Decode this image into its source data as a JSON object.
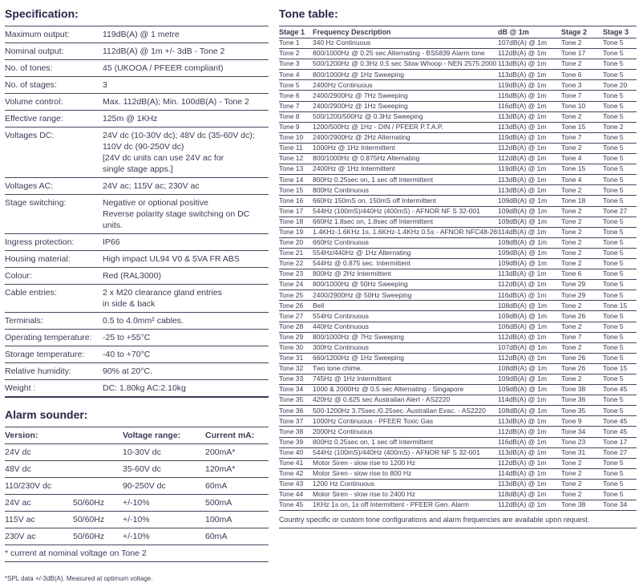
{
  "colors": {
    "text": "#3a3a55",
    "heading": "#26264a",
    "rule": "#45455f"
  },
  "spec": {
    "title": "Specification:",
    "rows": [
      {
        "label": "Maximum output:",
        "value_lines": [
          "119dB(A) @ 1 metre"
        ]
      },
      {
        "label": "Nominal output:",
        "value_lines": [
          "112dB(A) @ 1m +/- 3dB - Tone 2"
        ]
      },
      {
        "label": "No. of tones:",
        "value_lines": [
          "45 (UKOOA / PFEER compliant)"
        ]
      },
      {
        "label": "No. of stages:",
        "value_lines": [
          "3"
        ]
      },
      {
        "label": "Volume control:",
        "value_lines": [
          "Max. 112dB(A); Min. 100dB(A) - Tone 2"
        ]
      },
      {
        "label": "Effective range:",
        "value_lines": [
          "125m @ 1KHz"
        ]
      },
      {
        "label": "Voltages DC:",
        "value_lines": [
          "24V dc (10-30V dc); 48V dc (35-60V dc);",
          "110V dc (90-250V dc)",
          "[24V dc units can use 24V ac for",
          "single stage apps.]"
        ]
      },
      {
        "label": "Voltages AC:",
        "value_lines": [
          "24V ac; 115V ac; 230V ac"
        ]
      },
      {
        "label": "Stage switching:",
        "value_lines": [
          "Negative or optional positive",
          "Reverse polarity stage switching on DC units."
        ]
      },
      {
        "label": "Ingress protection:",
        "value_lines": [
          "IP66"
        ]
      },
      {
        "label": "Housing material:",
        "value_lines": [
          "High impact UL94 V0 & 5VA FR ABS"
        ]
      },
      {
        "label": "Colour:",
        "value_lines": [
          "Red (RAL3000)"
        ]
      },
      {
        "label": "Cable entries:",
        "value_lines": [
          "2 x M20 clearance gland entries",
          "in side & back"
        ]
      },
      {
        "label": "Terminals:",
        "value_lines": [
          "0.5 to 4.0mm² cables."
        ]
      },
      {
        "label": "Operating temperature:",
        "value_lines": [
          "-25 to +55°C"
        ]
      },
      {
        "label": "Storage temperature:",
        "value_lines": [
          "-40 to +70°C"
        ]
      },
      {
        "label": "Relative humidity:",
        "value_lines": [
          "90% at 20°C."
        ]
      },
      {
        "label": "Weight :",
        "value_lines": [
          "DC: 1.80kg AC:2.10kg"
        ]
      }
    ]
  },
  "alarm": {
    "title": "Alarm sounder:",
    "headers": [
      "Version:",
      "Voltage range:",
      "Current mA:"
    ],
    "rows": [
      [
        "24V dc",
        "",
        "10-30V dc",
        "200mA*"
      ],
      [
        "48V dc",
        "",
        "35-60V dc",
        "120mA*"
      ],
      [
        "110/230V dc",
        "",
        "90-250V dc",
        "60mA"
      ],
      [
        "24V ac",
        "50/60Hz",
        "+/-10%",
        "500mA"
      ],
      [
        "115V ac",
        "50/60Hz",
        "+/-10%",
        "100mA"
      ],
      [
        "230V ac",
        "50/60Hz",
        "+/-10%",
        "60mA"
      ]
    ],
    "footnote": "* current at nominal voltage on Tone 2"
  },
  "spl_note": "*SPL data +/-3dB(A). Measured at optimum voltage.",
  "tone_table": {
    "title": "Tone table:",
    "headers": [
      "Stage 1",
      "Frequency Description",
      "dB @ 1m",
      "Stage 2",
      "Stage 3"
    ],
    "rows": [
      [
        "Tone 1",
        "340 Hz Continuous",
        "107dB(A) @ 1m",
        "Tone 2",
        "Tone 5"
      ],
      [
        "Tone 2",
        "800/1000Hz @ 0.25 sec Alternating - BS5839 Alarm tone",
        "112dB(A) @ 1m",
        "Tone 17",
        "Tone 5"
      ],
      [
        "Tone 3",
        "500/1200Hz @ 0.3Hz 0.5 sec Slow Whoop - NEN 2575:2000",
        "113dB(A) @ 1m",
        "Tone 2",
        "Tone 5"
      ],
      [
        "Tone 4",
        "800/1000Hz @ 1Hz Sweeping",
        "113dB(A) @ 1m",
        "Tone 6",
        "Tone 5"
      ],
      [
        "Tone 5",
        "2400Hz Continuous",
        "119dB(A) @ 1m",
        "Tone 3",
        "Tone 20"
      ],
      [
        "Tone 6",
        "2400/2900Hz @ 7Hz Sweeping",
        "116dB(A) @ 1m",
        "Tone 7",
        "Tone 5"
      ],
      [
        "Tone 7",
        "2400/2900Hz @ 1Hz Sweeping",
        "116dB(A) @ 1m",
        "Tone 10",
        "Tone 5"
      ],
      [
        "Tone 8",
        "500/1200/500Hz @ 0.3Hz Sweeping",
        "113dB(A) @ 1m",
        "Tone 2",
        "Tone 5"
      ],
      [
        "Tone 9",
        "1200/500Hz @ 1Hz - DIN / PFEER P.T.A.P.",
        "113dB(A) @ 1m",
        "Tone 15",
        "Tone 2"
      ],
      [
        "Tone 10",
        "2400/2900Hz @ 2Hz Alternating",
        "119dB(A) @ 1m",
        "Tone 7",
        "Tone 5"
      ],
      [
        "Tone 11",
        "1000Hz @ 1Hz Intermittent",
        "112dB(A) @ 1m",
        "Tone 2",
        "Tone 5"
      ],
      [
        "Tone 12",
        "800/1000Hz @ 0.875Hz Alternating",
        "112dB(A) @ 1m",
        "Tone 4",
        "Tone 5"
      ],
      [
        "Tone 13",
        "2400Hz @ 1Hz Intermittent",
        "119dB(A) @ 1m",
        "Tone 15",
        "Tone 5"
      ],
      [
        "Tone 14",
        "800Hz 0.25sec on, 1 sec off Intermittent",
        "113dB(A) @ 1m",
        "Tone 4",
        "Tone 5"
      ],
      [
        "Tone 15",
        "800Hz Continuous",
        "113dB(A) @ 1m",
        "Tone 2",
        "Tone 5"
      ],
      [
        "Tone 16",
        "660Hz 150mS on, 150mS off Intermittent",
        "109dB(A) @ 1m",
        "Tone 18",
        "Tone 5"
      ],
      [
        "Tone 17",
        "544Hz (100mS)/440Hz (400mS) - AFNOR NF S 32-001",
        "109dB(A) @ 1m",
        "Tone 2",
        "Tone 27"
      ],
      [
        "Tone 18",
        "660Hz 1.8sec on, 1.8sec off Intermittent",
        "109dB(A) @ 1m",
        "Tone 2",
        "Tone 5"
      ],
      [
        "Tone 19",
        "1.4KHz-1.6KHz 1s, 1.6KHz-1.4KHz 0.5s - AFNOR NFC48-265",
        "114dB(A) @ 1m",
        "Tone 2",
        "Tone 5"
      ],
      [
        "Tone 20",
        "660Hz Continuous",
        "109dB(A) @ 1m",
        "Tone 2",
        "Tone 5"
      ],
      [
        "Tone 21",
        "554Hz/440Hz @ 1Hz Alternating",
        "109dB(A) @ 1m",
        "Tone 2",
        "Tone 5"
      ],
      [
        "Tone 22",
        "544Hz @ 0.875 sec. Intermittent",
        "109dB(A) @ 1m",
        "Tone 2",
        "Tone 5"
      ],
      [
        "Tone 23",
        "800Hz @ 2Hz Intermittent",
        "113dB(A) @ 1m",
        "Tone 6",
        "Tone 5"
      ],
      [
        "Tone 24",
        "800/1000Hz @ 50Hz Sweeping",
        "112dB(A) @ 1m",
        "Tone 29",
        "Tone 5"
      ],
      [
        "Tone 25",
        "2400/2900Hz @ 50Hz Sweeping",
        "116dB(A) @ 1m",
        "Tone 29",
        "Tone 5"
      ],
      [
        "Tone 26",
        "Bell",
        "108dB(A) @ 1m",
        "Tone 2",
        "Tone 15"
      ],
      [
        "Tone 27",
        "554Hz Continuous",
        "109dB(A) @ 1m",
        "Tone 26",
        "Tone 5"
      ],
      [
        "Tone 28",
        "440Hz Continuous",
        "106dB(A) @ 1m",
        "Tone 2",
        "Tone 5"
      ],
      [
        "Tone 29",
        "800/1000Hz @ 7Hz Sweeping",
        "112dB(A) @ 1m",
        "Tone 7",
        "Tone 5"
      ],
      [
        "Tone 30",
        "300Hz Continuous",
        "107dB(A) @ 1m",
        "Tone 2",
        "Tone 5"
      ],
      [
        "Tone 31",
        "660/1200Hz @ 1Hz Sweeping",
        "112dB(A) @ 1m",
        "Tone 26",
        "Tone 5"
      ],
      [
        "Tone 32",
        "Two tone chime.",
        "108dB(A) @ 1m",
        "Tone 26",
        "Tone 15"
      ],
      [
        "Tone 33",
        "745Hz @ 1Hz Intermittent",
        "109dB(A) @ 1m",
        "Tone 2",
        "Tone 5"
      ],
      [
        "Tone 34",
        "1000 & 2000Hz @ 0.5 sec Alternating - Singapore",
        "109dB(A) @ 1m",
        "Tone 38",
        "Tone 45"
      ],
      [
        "Tone 35",
        "420Hz @ 0.625 sec Australian Alert - AS2220",
        "114dB(A) @ 1m",
        "Tone 36",
        "Tone 5"
      ],
      [
        "Tone 36",
        "500-1200Hz 3.75sec /0.25sec. Australian Evac. - AS2220",
        "108dB(A) @ 1m",
        "Tone 35",
        "Tone 5"
      ],
      [
        "Tone 37",
        "1000Hz Continuous - PFEER Toxic Gas",
        "113dB(A) @ 1m",
        "Tone 9",
        "Tone 45"
      ],
      [
        "Tone 38",
        "2000Hz Continuous",
        "112dB(A) @ 1m",
        "Tone 34",
        "Tone 45"
      ],
      [
        "Tone 39",
        "800Hz 0.25sec on, 1 sec off Intermittent",
        "116dB(A) @ 1m",
        "Tone 23",
        "Tone 17"
      ],
      [
        "Tone 40",
        "544Hz (100mS)/440Hz (400mS) - AFNOR NF S 32-001",
        "113dB(A) @ 1m",
        "Tone 31",
        "Tone 27"
      ],
      [
        "Tone 41",
        "Motor Siren - slow rise to 1200 Hz",
        "112dB(A) @ 1m",
        "Tone 2",
        "Tone 5"
      ],
      [
        "Tone 42",
        "Motor Siren - slow rise to 800 Hz",
        "114dB(A) @ 1m",
        "Tone 2",
        "Tone 5"
      ],
      [
        "Tone 43",
        "1200 Hz Continuous",
        "113dB(A) @ 1m",
        "Tone 2",
        "Tone 5"
      ],
      [
        "Tone 44",
        "Motor Siren - slow rise to 2400 Hz",
        "118dB(A) @ 1m",
        "Tone 2",
        "Tone 5"
      ],
      [
        "Tone 45",
        "1KHz 1s on, 1s off Intermittent - PFEER Gen. Alarm",
        "112dB(A) @ 1m",
        "Tone 38",
        "Tone 34"
      ]
    ],
    "note": "Country specific or custom tone configurations and alarm frequencies are available upon request."
  }
}
